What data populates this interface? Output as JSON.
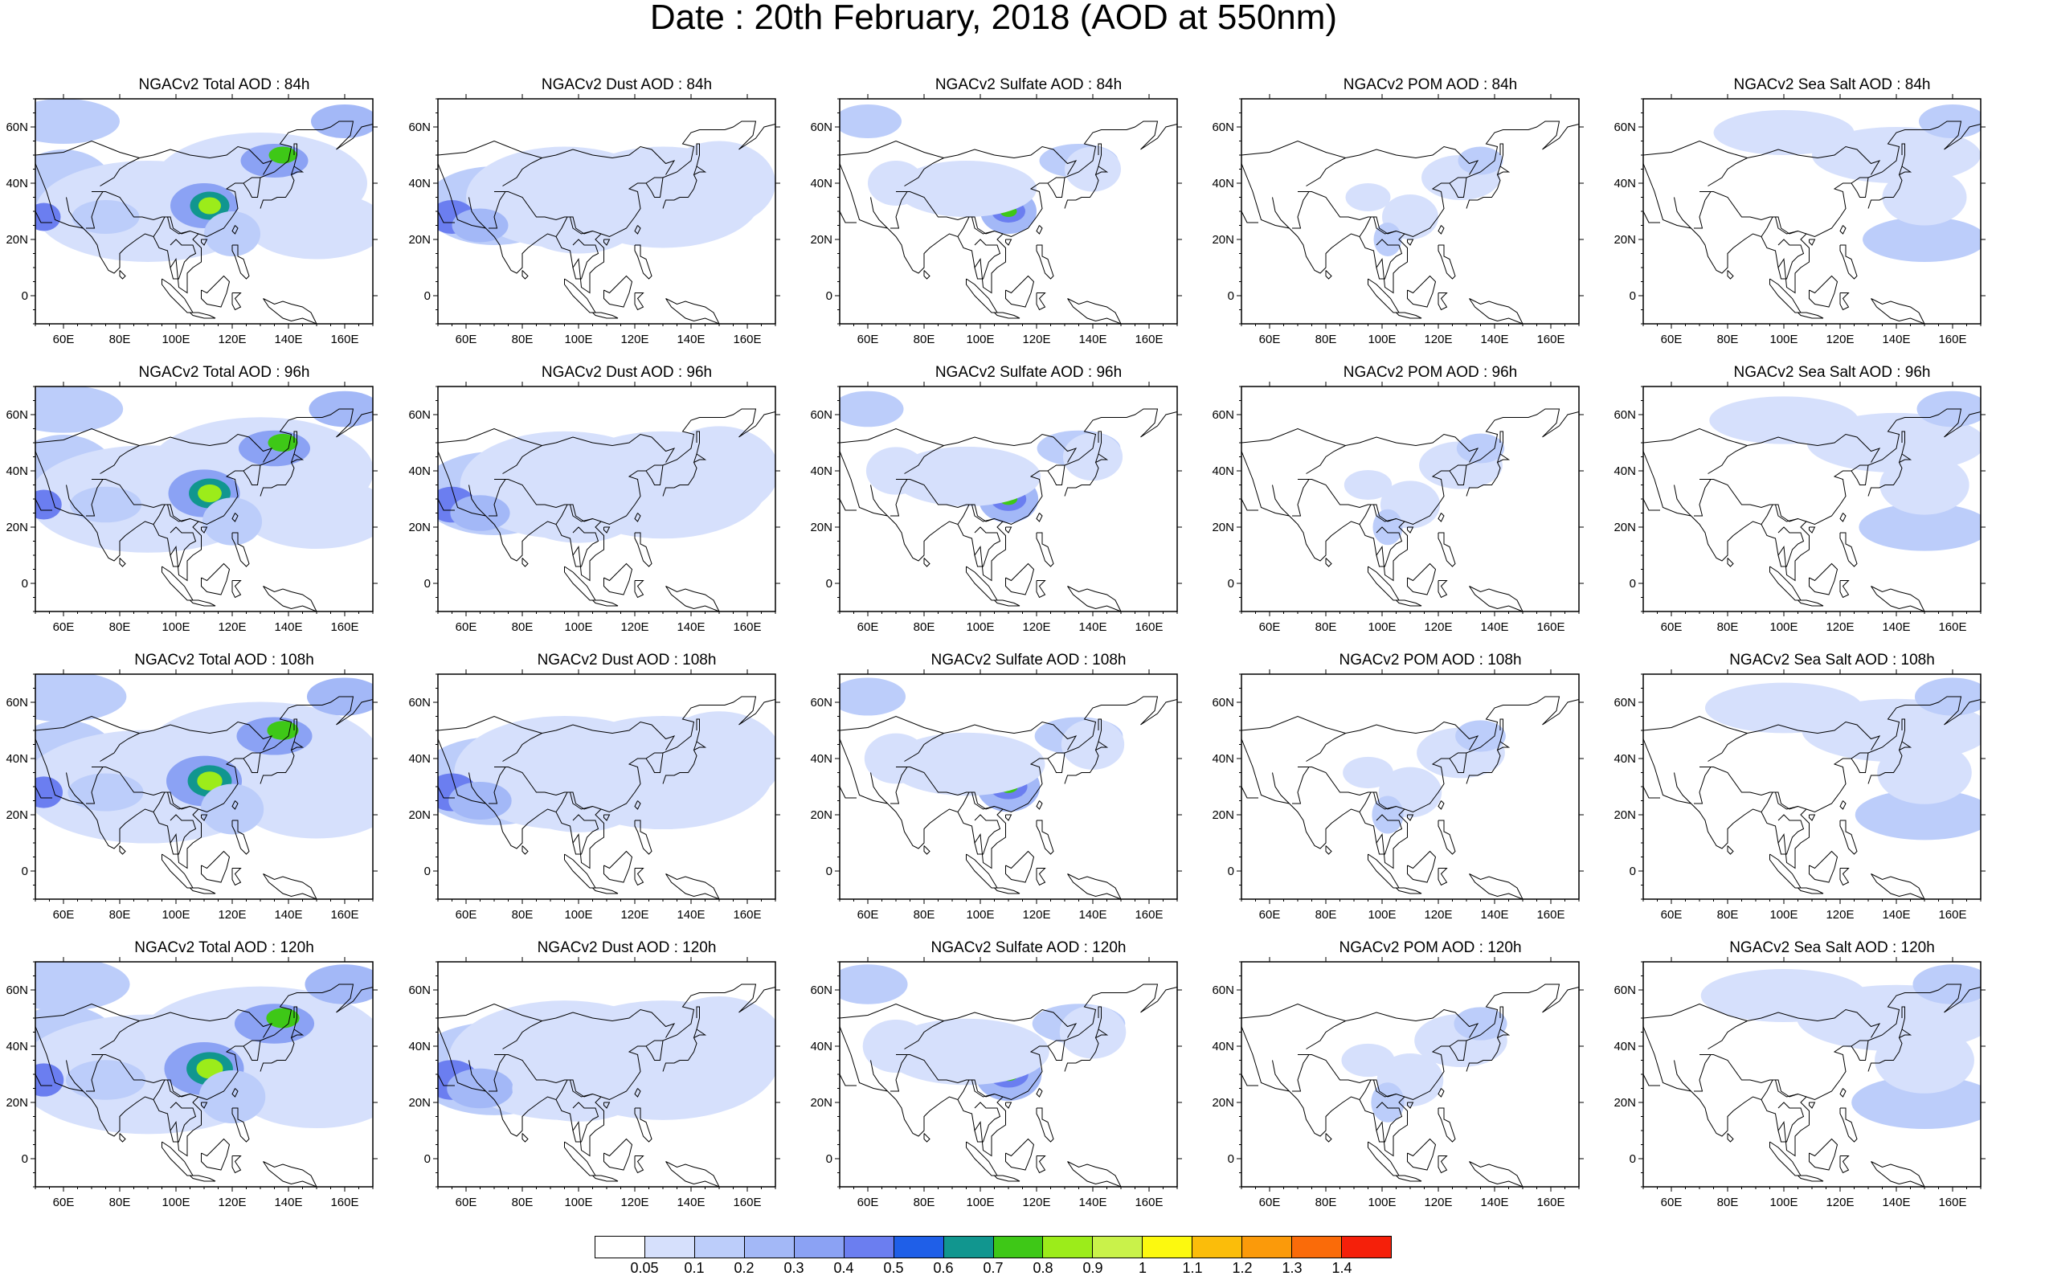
{
  "title": "Date : 20th February, 2018 (AOD at 550nm)",
  "axes": {
    "lon_ticks": [
      "60E",
      "80E",
      "100E",
      "120E",
      "140E",
      "160E"
    ],
    "lat_ticks": [
      "60N",
      "40N",
      "20N",
      "0"
    ]
  },
  "rows": [
    {
      "panels": [
        {
          "title": "NGACv2 Total AOD : 84h",
          "species": "total",
          "lead_hours": 84
        },
        {
          "title": "NGACv2 Dust AOD : 84h",
          "species": "dust",
          "lead_hours": 84
        },
        {
          "title": "NGACv2 Sulfate AOD : 84h",
          "species": "sulfate",
          "lead_hours": 84
        },
        {
          "title": "NGACv2 POM AOD : 84h",
          "species": "pom",
          "lead_hours": 84
        },
        {
          "title": "NGACv2 Sea Salt AOD : 84h",
          "species": "seasalt",
          "lead_hours": 84
        }
      ]
    },
    {
      "panels": [
        {
          "title": "NGACv2 Total AOD : 96h",
          "species": "total",
          "lead_hours": 96
        },
        {
          "title": "NGACv2 Dust AOD : 96h",
          "species": "dust",
          "lead_hours": 96
        },
        {
          "title": "NGACv2 Sulfate AOD : 96h",
          "species": "sulfate",
          "lead_hours": 96
        },
        {
          "title": "NGACv2 POM AOD : 96h",
          "species": "pom",
          "lead_hours": 96
        },
        {
          "title": "NGACv2 Sea Salt AOD : 96h",
          "species": "seasalt",
          "lead_hours": 96
        }
      ]
    },
    {
      "panels": [
        {
          "title": "NGACv2 Total AOD : 108h",
          "species": "total",
          "lead_hours": 108
        },
        {
          "title": "NGACv2 Dust AOD : 108h",
          "species": "dust",
          "lead_hours": 108
        },
        {
          "title": "NGACv2 Sulfate AOD : 108h",
          "species": "sulfate",
          "lead_hours": 108
        },
        {
          "title": "NGACv2 POM AOD : 108h",
          "species": "pom",
          "lead_hours": 108
        },
        {
          "title": "NGACv2 Sea Salt AOD : 108h",
          "species": "seasalt",
          "lead_hours": 108
        }
      ]
    },
    {
      "panels": [
        {
          "title": "NGACv2 Total AOD : 120h",
          "species": "total",
          "lead_hours": 120
        },
        {
          "title": "NGACv2 Dust AOD : 120h",
          "species": "dust",
          "lead_hours": 120
        },
        {
          "title": "NGACv2 Sulfate AOD : 120h",
          "species": "sulfate",
          "lead_hours": 120
        },
        {
          "title": "NGACv2 POM AOD : 120h",
          "species": "pom",
          "lead_hours": 120
        },
        {
          "title": "NGACv2 Sea Salt  AOD : 120h",
          "species": "seasalt",
          "lead_hours": 120
        }
      ]
    }
  ],
  "colorbar": {
    "labels": [
      "0.05",
      "0.1",
      "0.2",
      "0.3",
      "0.4",
      "0.5",
      "0.6",
      "0.7",
      "0.8",
      "0.9",
      "1",
      "1.1",
      "1.2",
      "1.3",
      "1.4"
    ],
    "colors": [
      "#ffffff",
      "#d6e0fc",
      "#bccdfa",
      "#a3b8f7",
      "#8ba2f4",
      "#6b7ef0",
      "#1f5fe8",
      "#11968f",
      "#3ec817",
      "#9cec1a",
      "#c9f24a",
      "#fcf90f",
      "#fbbd0a",
      "#fb9a0a",
      "#fa6b09",
      "#f5200a"
    ]
  }
}
